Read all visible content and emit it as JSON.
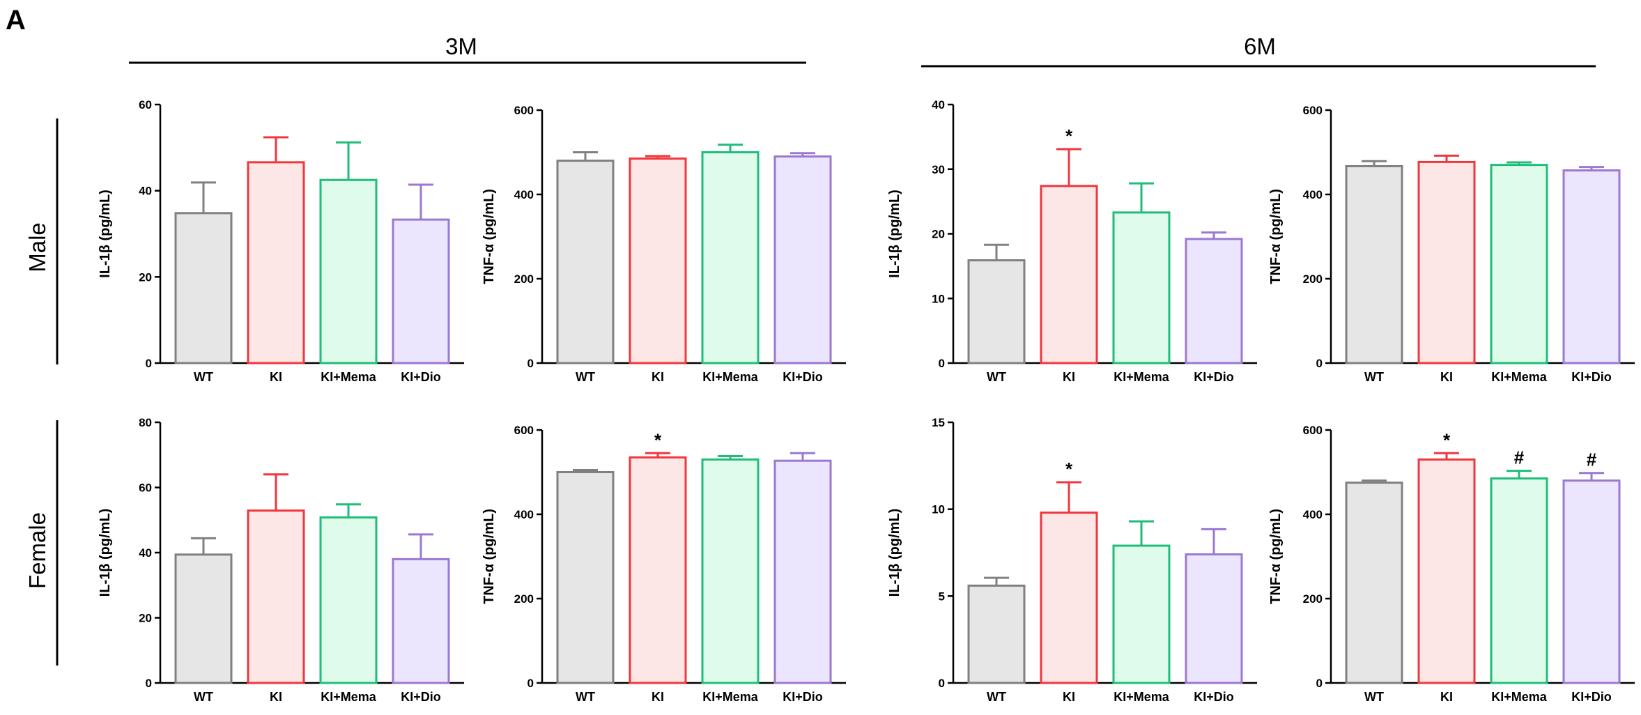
{
  "figure": {
    "panel_label": "A",
    "column_headers": [
      "3M",
      "6M"
    ],
    "row_labels": [
      "Male",
      "Female"
    ]
  },
  "colors": {
    "WT": {
      "stroke": "#808080",
      "fill": "#e6e6e6"
    },
    "KI": {
      "stroke": "#f0373c",
      "fill": "#fde6e6"
    },
    "KI+Mema": {
      "stroke": "#1fbe78",
      "fill": "#dffbec"
    },
    "KI+Dio": {
      "stroke": "#9b78d2",
      "fill": "#ebe6fd"
    }
  },
  "chart_data": [
    {
      "type": "bar",
      "id": "male-3m-il1b",
      "ylabel": "IL-1β (pg/mL)",
      "ylim": [
        0,
        60
      ],
      "yticks": [
        0,
        20,
        40,
        60
      ],
      "categories": [
        "WT",
        "KI",
        "KI+Mema",
        "KI+Dio"
      ],
      "values": [
        34.8,
        46.6,
        42.5,
        33.3
      ],
      "errors": [
        7.1,
        5.8,
        8.7,
        8.1
      ],
      "annotations": [
        "",
        "",
        "",
        ""
      ]
    },
    {
      "type": "bar",
      "id": "male-3m-tnfa",
      "ylabel": "TNF-α (pg/mL)",
      "ylim": [
        0,
        600
      ],
      "yticks": [
        0,
        200,
        400,
        600
      ],
      "categories": [
        "WT",
        "KI",
        "KI+Mema",
        "KI+Dio"
      ],
      "values": [
        480,
        485,
        500,
        490
      ],
      "errors": [
        20,
        6,
        18,
        8
      ],
      "annotations": [
        "",
        "",
        "",
        ""
      ]
    },
    {
      "type": "bar",
      "id": "male-6m-il1b",
      "ylabel": "IL-1β (pg/mL)",
      "ylim": [
        0,
        40
      ],
      "yticks": [
        0,
        10,
        20,
        30,
        40
      ],
      "categories": [
        "WT",
        "KI",
        "KI+Mema",
        "KI+Dio"
      ],
      "values": [
        15.9,
        27.4,
        23.3,
        19.2
      ],
      "errors": [
        2.4,
        5.7,
        4.5,
        1.0
      ],
      "annotations": [
        "",
        "*",
        "",
        ""
      ]
    },
    {
      "type": "bar",
      "id": "male-6m-tnfa",
      "ylabel": "TNF-α (pg/mL)",
      "ylim": [
        0,
        600
      ],
      "yticks": [
        0,
        200,
        400,
        600
      ],
      "categories": [
        "WT",
        "KI",
        "KI+Mema",
        "KI+Dio"
      ],
      "values": [
        467,
        477,
        470,
        457
      ],
      "errors": [
        12,
        15,
        6,
        8
      ],
      "annotations": [
        "",
        "",
        "",
        ""
      ]
    },
    {
      "type": "bar",
      "id": "female-3m-il1b",
      "ylabel": "IL-1β (pg/mL)",
      "ylim": [
        0,
        80
      ],
      "yticks": [
        0,
        20,
        40,
        60,
        80
      ],
      "categories": [
        "WT",
        "KI",
        "KI+Mema",
        "KI+Dio"
      ],
      "values": [
        39.4,
        52.9,
        50.8,
        38.0
      ],
      "errors": [
        5.0,
        11.1,
        4.0,
        7.6
      ],
      "annotations": [
        "",
        "",
        "",
        ""
      ]
    },
    {
      "type": "bar",
      "id": "female-3m-tnfa",
      "ylabel": "TNF-α (pg/mL)",
      "ylim": [
        0,
        600
      ],
      "yticks": [
        0,
        200,
        400,
        600
      ],
      "categories": [
        "WT",
        "KI",
        "KI+Mema",
        "KI+Dio"
      ],
      "values": [
        500,
        535,
        530,
        527
      ],
      "errors": [
        5,
        10,
        8,
        18
      ],
      "annotations": [
        "",
        "*",
        "",
        ""
      ]
    },
    {
      "type": "bar",
      "id": "female-6m-il1b",
      "ylabel": "IL-1β (pg/mL)",
      "ylim": [
        0,
        15
      ],
      "yticks": [
        0,
        5,
        10,
        15
      ],
      "categories": [
        "WT",
        "KI",
        "KI+Mema",
        "KI+Dio"
      ],
      "values": [
        5.6,
        9.8,
        7.9,
        7.4
      ],
      "errors": [
        0.45,
        1.75,
        1.4,
        1.45
      ],
      "annotations": [
        "",
        "*",
        "",
        ""
      ]
    },
    {
      "type": "bar",
      "id": "female-6m-tnfa",
      "ylabel": "TNF-α (pg/mL)",
      "ylim": [
        0,
        600
      ],
      "yticks": [
        0,
        200,
        400,
        600
      ],
      "categories": [
        "WT",
        "KI",
        "KI+Mema",
        "KI+Dio"
      ],
      "values": [
        475,
        530,
        485,
        480
      ],
      "errors": [
        5,
        15,
        18,
        18
      ],
      "annotations": [
        "",
        "*",
        "#",
        "#"
      ]
    }
  ]
}
